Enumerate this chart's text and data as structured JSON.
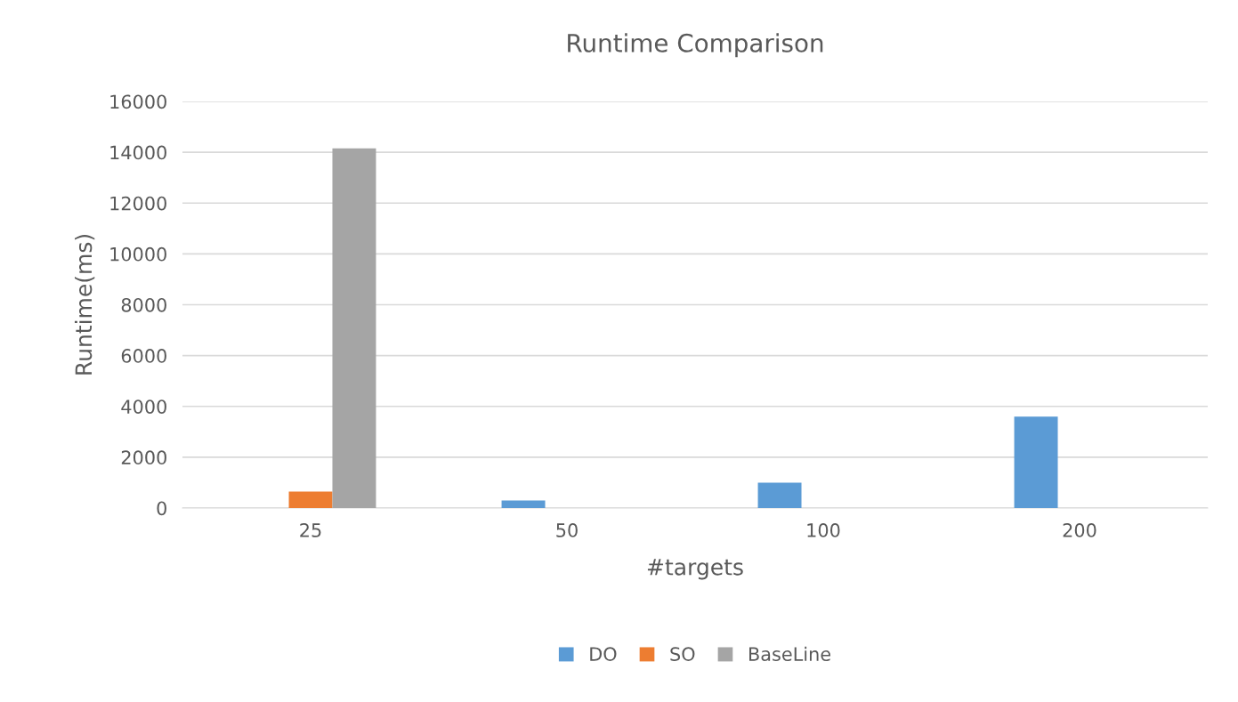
{
  "chart_data": {
    "type": "bar",
    "title": "Runtime Comparison",
    "xlabel": "#targets",
    "ylabel": "Runtime(ms)",
    "categories": [
      "25",
      "50",
      "100",
      "200"
    ],
    "series": [
      {
        "name": "DO",
        "color": "#5b9bd5",
        "values": [
          null,
          300,
          1000,
          3600
        ]
      },
      {
        "name": "SO",
        "color": "#ed7d31",
        "values": [
          650,
          null,
          null,
          null
        ]
      },
      {
        "name": "BaseLine",
        "color": "#a5a5a5",
        "values": [
          14150,
          null,
          null,
          null
        ]
      }
    ],
    "ylim": [
      0,
      16000
    ],
    "yticks": [
      0,
      2000,
      4000,
      6000,
      8000,
      10000,
      12000,
      14000,
      16000
    ],
    "grid": "y",
    "legend": "bottom"
  }
}
